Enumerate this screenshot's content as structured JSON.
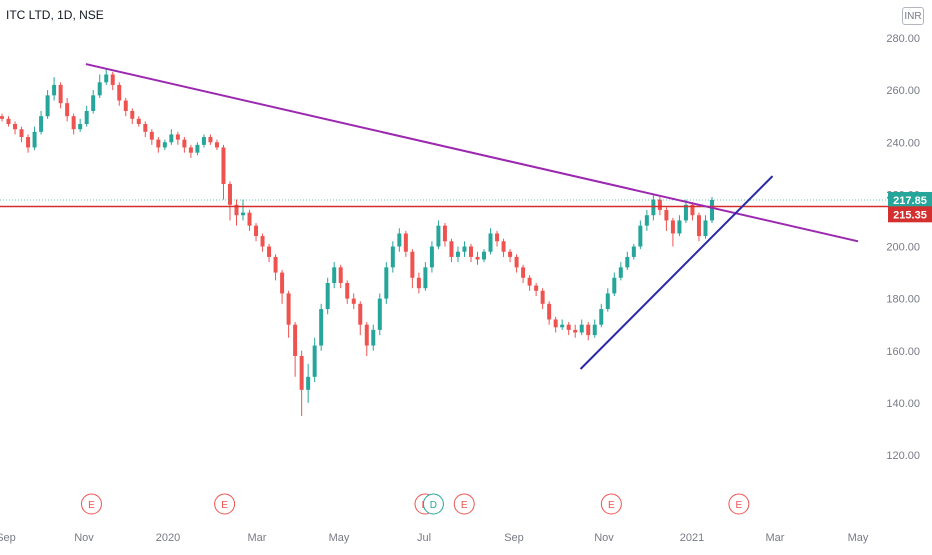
{
  "chart_data": {
    "type": "candlestick",
    "title": "ITC LTD, 1D, NSE",
    "currency": "INR",
    "y_ticks": [
      "280.00",
      "260.00",
      "240.00",
      "220.00",
      "200.00",
      "180.00",
      "160.00",
      "140.00",
      "120.00"
    ],
    "ylim": [
      115,
      285
    ],
    "x_ticks": [
      "Sep",
      "Nov",
      "2020",
      "Mar",
      "May",
      "Jul",
      "Sep",
      "Nov",
      "2021",
      "Mar",
      "May"
    ],
    "last_price": "217.85",
    "horizontal_level": "215.35",
    "colors": {
      "up": "#26a69a",
      "down": "#ef5350",
      "resistance": "#9c27b0",
      "support": "#2a2aa8",
      "level": "#d32f2f",
      "event": "#ef5350",
      "dividend": "#26a69a"
    },
    "trend_lines": [
      {
        "name": "descending",
        "from": [
          "2019-10-28",
          270
        ],
        "to": [
          "2021-05-01",
          202
        ]
      },
      {
        "name": "ascending",
        "from": [
          "2020-10-15",
          153
        ],
        "to": [
          "2021-03-01",
          227
        ]
      }
    ],
    "events": [
      {
        "date": "2019-11-01",
        "label": "E"
      },
      {
        "date": "2020-02-04",
        "label": "E"
      },
      {
        "date": "2020-06-26",
        "label": "E"
      },
      {
        "date": "2020-07-02",
        "label": "D"
      },
      {
        "date": "2020-07-24",
        "label": "E"
      },
      {
        "date": "2020-11-06",
        "label": "E"
      },
      {
        "date": "2021-02-05",
        "label": "E"
      }
    ],
    "series": [
      {
        "values": [
          [
            250,
            249,
            251,
            248
          ],
          [
            249,
            247,
            250,
            246
          ],
          [
            247,
            245,
            248,
            243
          ],
          [
            245,
            242,
            246,
            240
          ],
          [
            242,
            238,
            243,
            236
          ],
          [
            238,
            244,
            246,
            237
          ],
          [
            244,
            250,
            252,
            243
          ],
          [
            250,
            258,
            260,
            249
          ],
          [
            258,
            262,
            265,
            256
          ],
          [
            262,
            255,
            263,
            253
          ],
          [
            255,
            250,
            257,
            248
          ],
          [
            250,
            245,
            251,
            243
          ],
          [
            245,
            247,
            249,
            244
          ],
          [
            247,
            252,
            254,
            246
          ],
          [
            252,
            258,
            260,
            251
          ],
          [
            258,
            263,
            266,
            257
          ],
          [
            263,
            266,
            268,
            262
          ],
          [
            266,
            262,
            267,
            260
          ],
          [
            262,
            256,
            263,
            254
          ],
          [
            256,
            252,
            257,
            250
          ],
          [
            252,
            249,
            253,
            247
          ],
          [
            249,
            247,
            250,
            246
          ],
          [
            247,
            244,
            248,
            242
          ],
          [
            244,
            241,
            245,
            239
          ],
          [
            241,
            238,
            242,
            236
          ],
          [
            238,
            240,
            241,
            237
          ],
          [
            240,
            243,
            245,
            239
          ],
          [
            243,
            241,
            244,
            239
          ],
          [
            241,
            238,
            242,
            236
          ],
          [
            238,
            236,
            239,
            234
          ],
          [
            236,
            239,
            240,
            235
          ],
          [
            239,
            242,
            243,
            238
          ],
          [
            242,
            240,
            243,
            239
          ],
          [
            240,
            238,
            241,
            237
          ],
          [
            238,
            224,
            239,
            218
          ],
          [
            224,
            216,
            225,
            210
          ],
          [
            216,
            212,
            218,
            208
          ],
          [
            212,
            213,
            218,
            210
          ],
          [
            213,
            208,
            214,
            206
          ],
          [
            208,
            204,
            209,
            202
          ],
          [
            204,
            200,
            205,
            198
          ],
          [
            200,
            196,
            201,
            194
          ],
          [
            196,
            190,
            197,
            187
          ],
          [
            190,
            182,
            191,
            178
          ],
          [
            182,
            170,
            183,
            165
          ],
          [
            170,
            158,
            171,
            150
          ],
          [
            158,
            145,
            160,
            135
          ],
          [
            145,
            150,
            155,
            140
          ],
          [
            150,
            162,
            165,
            148
          ],
          [
            162,
            176,
            178,
            160
          ],
          [
            176,
            186,
            188,
            174
          ],
          [
            186,
            192,
            194,
            184
          ],
          [
            192,
            186,
            193,
            184
          ],
          [
            186,
            180,
            187,
            178
          ],
          [
            180,
            178,
            182,
            176
          ],
          [
            178,
            170,
            179,
            166
          ],
          [
            170,
            162,
            171,
            158
          ],
          [
            162,
            168,
            170,
            160
          ],
          [
            168,
            180,
            182,
            166
          ],
          [
            180,
            192,
            194,
            178
          ],
          [
            192,
            200,
            202,
            190
          ],
          [
            200,
            205,
            207,
            198
          ],
          [
            205,
            198,
            206,
            196
          ],
          [
            198,
            188,
            199,
            184
          ],
          [
            188,
            184,
            190,
            182
          ],
          [
            184,
            192,
            194,
            183
          ],
          [
            192,
            200,
            202,
            190
          ],
          [
            200,
            208,
            210,
            199
          ],
          [
            208,
            202,
            209,
            200
          ],
          [
            202,
            196,
            203,
            194
          ],
          [
            196,
            198,
            200,
            194
          ],
          [
            198,
            200,
            202,
            196
          ],
          [
            200,
            196,
            201,
            194
          ],
          [
            196,
            195,
            198,
            193
          ],
          [
            195,
            198,
            199,
            194
          ],
          [
            198,
            205,
            207,
            197
          ],
          [
            205,
            202,
            206,
            200
          ],
          [
            202,
            198,
            203,
            196
          ],
          [
            198,
            196,
            199,
            194
          ],
          [
            196,
            192,
            197,
            190
          ],
          [
            192,
            188,
            193,
            186
          ],
          [
            188,
            185,
            189,
            183
          ],
          [
            185,
            183,
            186,
            181
          ],
          [
            183,
            178,
            184,
            176
          ],
          [
            178,
            172,
            179,
            170
          ],
          [
            172,
            169,
            173,
            167
          ],
          [
            169,
            170,
            172,
            168
          ],
          [
            170,
            168,
            171,
            166
          ],
          [
            168,
            167,
            170,
            165
          ],
          [
            167,
            170,
            172,
            166
          ],
          [
            170,
            166,
            171,
            164
          ],
          [
            166,
            170,
            172,
            165
          ],
          [
            170,
            176,
            178,
            169
          ],
          [
            176,
            182,
            184,
            175
          ],
          [
            182,
            188,
            190,
            181
          ],
          [
            188,
            192,
            194,
            187
          ],
          [
            192,
            196,
            198,
            191
          ],
          [
            196,
            200,
            201,
            195
          ],
          [
            200,
            208,
            210,
            199
          ],
          [
            208,
            212,
            214,
            206
          ],
          [
            212,
            218,
            220,
            210
          ],
          [
            218,
            214,
            219,
            212
          ],
          [
            214,
            210,
            215,
            206
          ],
          [
            210,
            205,
            211,
            200
          ],
          [
            205,
            210,
            212,
            204
          ],
          [
            210,
            216,
            218,
            209
          ],
          [
            216,
            212,
            217,
            210
          ],
          [
            212,
            204,
            213,
            202
          ],
          [
            204,
            210,
            212,
            203
          ],
          [
            210,
            217.85,
            219,
            209
          ]
        ]
      }
    ]
  }
}
